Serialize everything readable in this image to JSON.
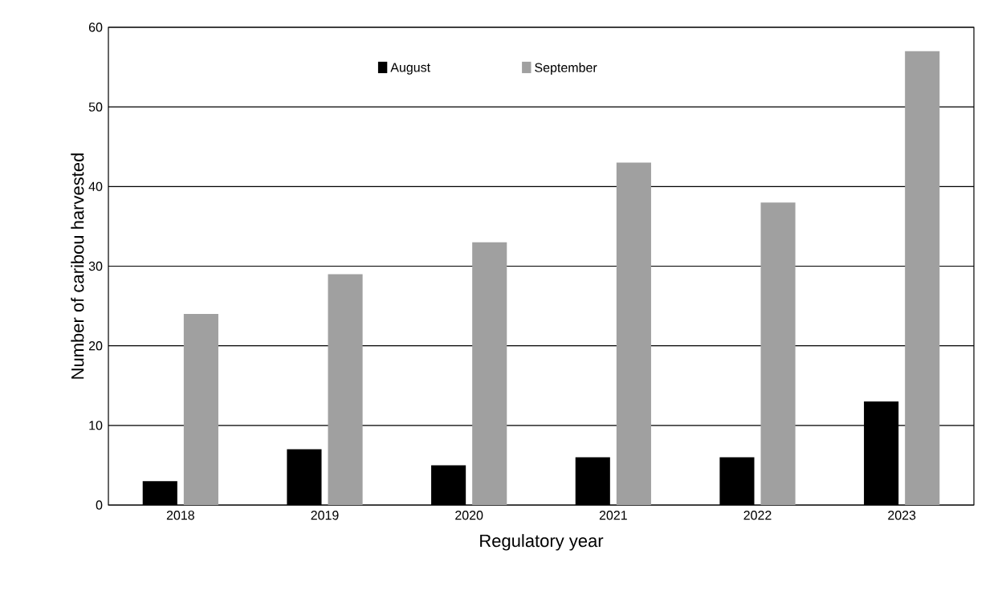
{
  "chart_data": {
    "type": "bar",
    "xlabel": "Regulatory year",
    "ylabel": "Number of caribou harvested",
    "categories": [
      "2018",
      "2019",
      "2020",
      "2021",
      "2022",
      "2023"
    ],
    "series": [
      {
        "name": "August",
        "color": "#000000",
        "values": [
          3,
          7,
          5,
          6,
          6,
          13
        ]
      },
      {
        "name": "September",
        "color": "#a0a0a0",
        "values": [
          24,
          29,
          33,
          43,
          38,
          57
        ]
      }
    ],
    "ylim": [
      0,
      60
    ],
    "yticks": [
      0,
      10,
      20,
      30,
      40,
      50,
      60
    ],
    "grid": "y",
    "legend": "top"
  }
}
